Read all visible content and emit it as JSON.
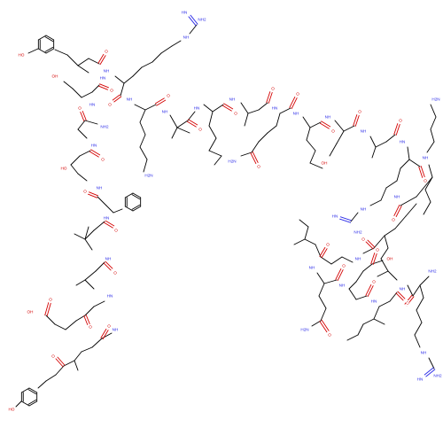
{
  "diagram": {
    "type": "skeletal-structure",
    "colors": {
      "carbon": "#000000",
      "oxygen": "#d40000",
      "nitrogen": "#2a2ae8",
      "background": "#ffffff"
    },
    "labels": {
      "ho": "HO",
      "oh": "OH",
      "o": "O",
      "nh": "NH",
      "hn": "HN",
      "nh2": "NH2",
      "h2n": "H2N"
    }
  }
}
